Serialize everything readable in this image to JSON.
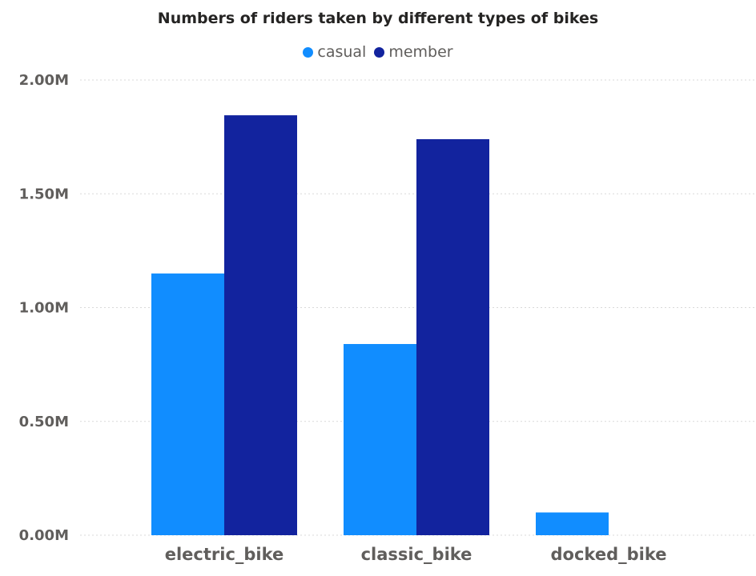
{
  "chart_data": {
    "type": "bar",
    "title": "Numbers of riders taken by different types of bikes",
    "categories": [
      "electric_bike",
      "classic_bike",
      "docked_bike"
    ],
    "series": [
      {
        "name": "casual",
        "color": "#118dff",
        "values": [
          1150000,
          840000,
          100000
        ]
      },
      {
        "name": "member",
        "color": "#12239e",
        "values": [
          1845000,
          1740000,
          0
        ]
      }
    ],
    "ylim": [
      0,
      2000000
    ],
    "yticks": [
      0,
      500000,
      1000000,
      1500000,
      2000000
    ],
    "ytick_labels": [
      "0.00M",
      "0.50M",
      "1.00M",
      "1.50M",
      "2.00M"
    ],
    "xlabel": "",
    "ylabel": "",
    "grid": true,
    "legend_position": "top-center"
  }
}
